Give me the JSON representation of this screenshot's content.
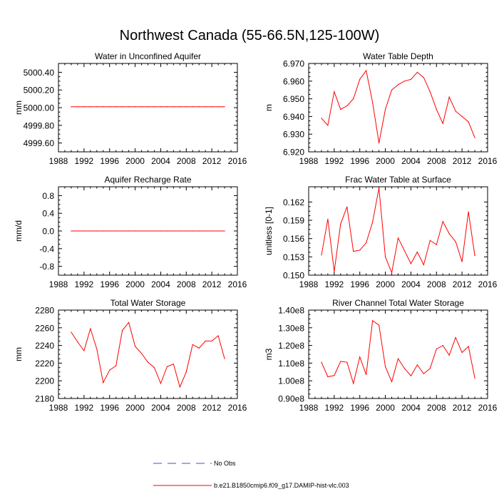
{
  "figure_title": "Northwest Canada (55-66.5N,125-100W)",
  "legend": {
    "no_obs_label": "No Obs",
    "model_label": "b.e21.B1850cmip6.f09_g17.DAMIP-hist-vlc.003"
  },
  "colors": {
    "model": "#ff0000",
    "no_obs": "#3a55cc",
    "axis": "#000000"
  },
  "chart_data": [
    {
      "type": "line",
      "title": "Water in Unconfined Aquifer",
      "xlabel": "",
      "ylabel": "mm",
      "xlim": [
        1988,
        2016
      ],
      "xticks": [
        1988,
        1992,
        1996,
        2000,
        2004,
        2008,
        2012,
        2016
      ],
      "xtick_labels": [
        "1988",
        "1992",
        "1996",
        "2000",
        "2004",
        "2008",
        "2012",
        "2016"
      ],
      "ylim": [
        4999.5,
        5000.5
      ],
      "yticks": [
        4999.6,
        4999.8,
        5000.0,
        5000.2,
        5000.4
      ],
      "ytick_labels": [
        "4999.60",
        "4999.80",
        "5000.00",
        "5000.20",
        "5000.40"
      ],
      "series": [
        {
          "name": "b.e21.B1850cmip6.f09_g17.DAMIP-hist-vlc.003",
          "x": [
            1990,
            1991,
            1992,
            1993,
            1994,
            1995,
            1996,
            1997,
            1998,
            1999,
            2000,
            2001,
            2002,
            2003,
            2004,
            2005,
            2006,
            2007,
            2008,
            2009,
            2010,
            2011,
            2012,
            2013,
            2014
          ],
          "values": [
            5000.01,
            5000.01,
            5000.01,
            5000.01,
            5000.01,
            5000.01,
            5000.01,
            5000.01,
            5000.01,
            5000.01,
            5000.01,
            5000.01,
            5000.01,
            5000.01,
            5000.01,
            5000.01,
            5000.01,
            5000.01,
            5000.01,
            5000.01,
            5000.01,
            5000.01,
            5000.01,
            5000.01,
            5000.01
          ]
        }
      ]
    },
    {
      "type": "line",
      "title": "Water Table Depth",
      "xlabel": "",
      "ylabel": "m",
      "xlim": [
        1988,
        2016
      ],
      "xticks": [
        1988,
        1992,
        1996,
        2000,
        2004,
        2008,
        2012,
        2016
      ],
      "xtick_labels": [
        "1988",
        "1992",
        "1996",
        "2000",
        "2004",
        "2008",
        "2012",
        "2016"
      ],
      "ylim": [
        6.92,
        6.97
      ],
      "yticks": [
        6.92,
        6.93,
        6.94,
        6.95,
        6.96,
        6.97
      ],
      "ytick_labels": [
        "6.920",
        "6.930",
        "6.940",
        "6.950",
        "6.960",
        "6.970"
      ],
      "series": [
        {
          "name": "b.e21.B1850cmip6.f09_g17.DAMIP-hist-vlc.003",
          "x": [
            1990,
            1991,
            1992,
            1993,
            1994,
            1995,
            1996,
            1997,
            1998,
            1999,
            2000,
            2001,
            2002,
            2003,
            2004,
            2005,
            2006,
            2007,
            2008,
            2009,
            2010,
            2011,
            2012,
            2013,
            2014
          ],
          "values": [
            6.939,
            6.935,
            6.954,
            6.944,
            6.946,
            6.95,
            6.961,
            6.966,
            6.948,
            6.925,
            6.944,
            6.955,
            6.958,
            6.96,
            6.961,
            6.965,
            6.962,
            6.954,
            6.944,
            6.936,
            6.951,
            6.943,
            6.94,
            6.937,
            6.928
          ]
        }
      ]
    },
    {
      "type": "line",
      "title": "Aquifer Recharge Rate",
      "xlabel": "",
      "ylabel": "mm/d",
      "xlim": [
        1988,
        2016
      ],
      "xticks": [
        1988,
        1992,
        1996,
        2000,
        2004,
        2008,
        2012,
        2016
      ],
      "xtick_labels": [
        "1988",
        "1992",
        "1996",
        "2000",
        "2004",
        "2008",
        "2012",
        "2016"
      ],
      "ylim": [
        -1.0,
        1.0
      ],
      "yticks": [
        -0.8,
        -0.4,
        0.0,
        0.4,
        0.8
      ],
      "ytick_labels": [
        "-0.8",
        "-0.4",
        "0.0",
        "0.4",
        "0.8"
      ],
      "series": [
        {
          "name": "b.e21.B1850cmip6.f09_g17.DAMIP-hist-vlc.003",
          "x": [
            1990,
            1991,
            1992,
            1993,
            1994,
            1995,
            1996,
            1997,
            1998,
            1999,
            2000,
            2001,
            2002,
            2003,
            2004,
            2005,
            2006,
            2007,
            2008,
            2009,
            2010,
            2011,
            2012,
            2013,
            2014
          ],
          "values": [
            0,
            0,
            0,
            0,
            0,
            0,
            0,
            0,
            0,
            0,
            0,
            0,
            0,
            0,
            0,
            0,
            0,
            0,
            0,
            0,
            0,
            0,
            0,
            0,
            0
          ]
        }
      ]
    },
    {
      "type": "line",
      "title": "Frac Water Table at Surface",
      "xlabel": "",
      "ylabel": "unitless [0-1]",
      "xlim": [
        1988,
        2016
      ],
      "xticks": [
        1988,
        1992,
        1996,
        2000,
        2004,
        2008,
        2012,
        2016
      ],
      "xtick_labels": [
        "1988",
        "1992",
        "1996",
        "2000",
        "2004",
        "2008",
        "2012",
        "2016"
      ],
      "ylim": [
        0.15,
        0.1645
      ],
      "yticks": [
        0.15,
        0.153,
        0.156,
        0.159,
        0.162
      ],
      "ytick_labels": [
        "0.150",
        "0.153",
        "0.156",
        "0.159",
        "0.162"
      ],
      "series": [
        {
          "name": "b.e21.B1850cmip6.f09_g17.DAMIP-hist-vlc.003",
          "x": [
            1990,
            1991,
            1992,
            1993,
            1994,
            1995,
            1996,
            1997,
            1998,
            1999,
            2000,
            2001,
            2002,
            2003,
            2004,
            2005,
            2006,
            2007,
            2008,
            2009,
            2010,
            2011,
            2012,
            2013,
            2014
          ],
          "values": [
            0.1533,
            0.1592,
            0.1506,
            0.1584,
            0.1612,
            0.1539,
            0.1541,
            0.1553,
            0.1587,
            0.1643,
            0.153,
            0.1504,
            0.1561,
            0.154,
            0.1519,
            0.1538,
            0.1517,
            0.1557,
            0.155,
            0.1588,
            0.1568,
            0.1555,
            0.1522,
            0.1604,
            0.1532
          ]
        }
      ]
    },
    {
      "type": "line",
      "title": "Total Water Storage",
      "xlabel": "",
      "ylabel": "mm",
      "xlim": [
        1988,
        2016
      ],
      "xticks": [
        1988,
        1992,
        1996,
        2000,
        2004,
        2008,
        2012,
        2016
      ],
      "xtick_labels": [
        "1988",
        "1992",
        "1996",
        "2000",
        "2004",
        "2008",
        "2012",
        "2016"
      ],
      "ylim": [
        2180,
        2280
      ],
      "yticks": [
        2180,
        2200,
        2220,
        2240,
        2260,
        2280
      ],
      "ytick_labels": [
        "2180",
        "2200",
        "2220",
        "2240",
        "2260",
        "2280"
      ],
      "series": [
        {
          "name": "b.e21.B1850cmip6.f09_g17.DAMIP-hist-vlc.003",
          "x": [
            1990,
            1991,
            1992,
            1993,
            1994,
            1995,
            1996,
            1997,
            1998,
            1999,
            2000,
            2001,
            2002,
            2003,
            2004,
            2005,
            2006,
            2007,
            2008,
            2009,
            2010,
            2011,
            2012,
            2013,
            2014
          ],
          "values": [
            2255,
            2244,
            2234,
            2259,
            2236,
            2198,
            2212,
            2217,
            2257,
            2266,
            2239,
            2231,
            2221,
            2215,
            2197,
            2216,
            2219,
            2193,
            2210,
            2241,
            2237,
            2245,
            2245,
            2251,
            2225
          ]
        }
      ]
    },
    {
      "type": "line",
      "title": "River Channel Total Water Storage",
      "xlabel": "",
      "ylabel": "m3",
      "xlim": [
        1988,
        2016
      ],
      "xticks": [
        1988,
        1992,
        1996,
        2000,
        2004,
        2008,
        2012,
        2016
      ],
      "xtick_labels": [
        "1988",
        "1992",
        "1996",
        "2000",
        "2004",
        "2008",
        "2012",
        "2016"
      ],
      "ylim": [
        90000000,
        140000000
      ],
      "yticks": [
        90000000,
        100000000,
        110000000,
        120000000,
        130000000,
        140000000
      ],
      "ytick_labels": [
        "0.90e8",
        "1.00e8",
        "1.10e8",
        "1.20e8",
        "1.30e8",
        "1.40e8"
      ],
      "series": [
        {
          "name": "b.e21.B1850cmip6.f09_g17.DAMIP-hist-vlc.003",
          "x": [
            1990,
            1991,
            1992,
            1993,
            1994,
            1995,
            1996,
            1997,
            1998,
            1999,
            2000,
            2001,
            2002,
            2003,
            2004,
            2005,
            2006,
            2007,
            2008,
            2009,
            2010,
            2011,
            2012,
            2013,
            2014
          ],
          "values": [
            110500000,
            102300000,
            103000000,
            111000000,
            110500000,
            98500000,
            113500000,
            103500000,
            134000000,
            131500000,
            108000000,
            99500000,
            112500000,
            107000000,
            102800000,
            109000000,
            104000000,
            107000000,
            118000000,
            120000000,
            114500000,
            124500000,
            116000000,
            119500000,
            101500000
          ]
        }
      ]
    }
  ]
}
